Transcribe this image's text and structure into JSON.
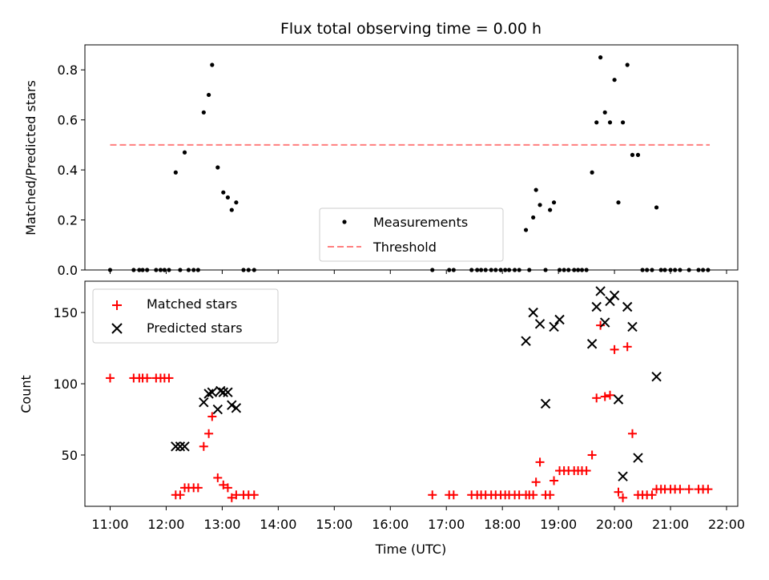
{
  "chart_data": [
    {
      "type": "scatter",
      "title": "Flux total observing time = 0.00 h",
      "xlabel": "",
      "ylabel": "Matched/Predicted stars",
      "xlim": [
        10.55,
        22.2
      ],
      "ylim": [
        0,
        0.9
      ],
      "yticks": [
        0.0,
        0.2,
        0.4,
        0.6,
        0.8
      ],
      "ytick_labels": [
        "0.0",
        "0.2",
        "0.4",
        "0.6",
        "0.8"
      ],
      "legend_position": "lower-center",
      "series": [
        {
          "name": "Measurements",
          "color": "#000000",
          "marker": "dot",
          "x": [
            11.0,
            11.42,
            11.52,
            11.58,
            11.66,
            11.82,
            11.9,
            11.97,
            12.05,
            12.17,
            12.25,
            12.33,
            12.4,
            12.49,
            12.57,
            12.67,
            12.76,
            12.82,
            12.92,
            13.02,
            13.1,
            13.17,
            13.25,
            13.38,
            13.47,
            13.57,
            16.75,
            17.05,
            17.13,
            17.45,
            17.55,
            17.62,
            17.7,
            17.8,
            17.88,
            17.97,
            18.05,
            18.12,
            18.22,
            18.3,
            18.42,
            18.48,
            18.55,
            18.6,
            18.67,
            18.77,
            18.85,
            18.92,
            19.02,
            19.1,
            19.18,
            19.28,
            19.35,
            19.42,
            19.5,
            19.6,
            19.68,
            19.75,
            19.83,
            19.92,
            20.0,
            20.07,
            20.15,
            20.23,
            20.32,
            20.42,
            20.5,
            20.58,
            20.67,
            20.75,
            20.83,
            20.9,
            21.0,
            21.08,
            21.17,
            21.33,
            21.5,
            21.58,
            21.67
          ],
          "y": [
            0.0,
            0.0,
            0.0,
            0.0,
            0.0,
            0.0,
            0.0,
            0.0,
            0.0,
            0.39,
            0.0,
            0.47,
            0.0,
            0.0,
            0.0,
            0.63,
            0.7,
            0.82,
            0.41,
            0.31,
            0.29,
            0.24,
            0.27,
            0.0,
            0.0,
            0.0,
            0.0,
            0.0,
            0.0,
            0.0,
            0.0,
            0.0,
            0.0,
            0.0,
            0.0,
            0.0,
            0.0,
            0.0,
            0.0,
            0.0,
            0.16,
            0.0,
            0.21,
            0.32,
            0.26,
            0.0,
            0.24,
            0.27,
            0.0,
            0.0,
            0.0,
            0.0,
            0.0,
            0.0,
            0.0,
            0.39,
            0.59,
            0.85,
            0.63,
            0.59,
            0.76,
            0.27,
            0.59,
            0.82,
            0.46,
            0.46,
            0.0,
            0.0,
            0.0,
            0.25,
            0.0,
            0.0,
            0.0,
            0.0,
            0.0,
            0.0,
            0.0,
            0.0,
            0.0
          ]
        },
        {
          "name": "Threshold",
          "color": "#ff7f7f",
          "style": "dashed",
          "x": [
            11.0,
            21.7
          ],
          "y": [
            0.5,
            0.5
          ]
        }
      ]
    },
    {
      "type": "scatter",
      "title": "",
      "xlabel": "Time (UTC)",
      "ylabel": "Count",
      "xlim": [
        10.55,
        22.2
      ],
      "ylim": [
        14,
        172
      ],
      "yticks": [
        50,
        100,
        150
      ],
      "ytick_labels": [
        "50",
        "100",
        "150"
      ],
      "xticks": [
        11,
        12,
        13,
        14,
        15,
        16,
        17,
        18,
        19,
        20,
        21,
        22
      ],
      "xtick_labels": [
        "11:00",
        "12:00",
        "13:00",
        "14:00",
        "15:00",
        "16:00",
        "17:00",
        "18:00",
        "19:00",
        "20:00",
        "21:00",
        "22:00"
      ],
      "legend_position": "upper-left",
      "series": [
        {
          "name": "Matched stars",
          "color": "#ff0000",
          "marker": "plus",
          "x": [
            11.0,
            11.42,
            11.52,
            11.58,
            11.66,
            11.82,
            11.9,
            11.97,
            12.05,
            12.17,
            12.25,
            12.33,
            12.4,
            12.49,
            12.57,
            12.67,
            12.76,
            12.82,
            12.92,
            13.02,
            13.1,
            13.17,
            13.25,
            13.38,
            13.47,
            13.57,
            16.75,
            17.05,
            17.13,
            17.45,
            17.55,
            17.62,
            17.7,
            17.8,
            17.88,
            17.97,
            18.05,
            18.12,
            18.22,
            18.3,
            18.42,
            18.48,
            18.55,
            18.6,
            18.67,
            18.77,
            18.85,
            18.92,
            19.02,
            19.1,
            19.18,
            19.28,
            19.35,
            19.42,
            19.5,
            19.6,
            19.68,
            19.75,
            19.83,
            19.92,
            20.0,
            20.07,
            20.15,
            20.23,
            20.32,
            20.42,
            20.5,
            20.58,
            20.67,
            20.75,
            20.83,
            20.9,
            21.0,
            21.08,
            21.17,
            21.33,
            21.5,
            21.58,
            21.67
          ],
          "y": [
            104,
            104,
            104,
            104,
            104,
            104,
            104,
            104,
            104,
            22,
            22,
            27,
            27,
            27,
            27,
            56,
            65,
            77,
            34,
            29,
            27,
            20,
            22,
            22,
            22,
            22,
            22,
            22,
            22,
            22,
            22,
            22,
            22,
            22,
            22,
            22,
            22,
            22,
            22,
            22,
            22,
            22,
            22,
            31,
            45,
            22,
            22,
            32,
            39,
            39,
            39,
            39,
            39,
            39,
            39,
            50,
            90,
            141,
            91,
            92,
            124,
            24,
            20,
            126,
            65,
            22,
            22,
            22,
            22,
            26,
            26,
            26,
            26,
            26,
            26,
            26,
            26,
            26,
            26
          ]
        },
        {
          "name": "Predicted stars",
          "color": "#000000",
          "marker": "x",
          "x": [
            12.17,
            12.25,
            12.33,
            12.67,
            12.76,
            12.82,
            12.92,
            12.97,
            13.02,
            13.1,
            13.17,
            13.25,
            18.42,
            18.55,
            18.67,
            18.77,
            18.92,
            19.02,
            19.6,
            19.68,
            19.75,
            19.83,
            19.92,
            20.0,
            20.07,
            20.15,
            20.23,
            20.32,
            20.42,
            20.75
          ],
          "y": [
            56,
            56,
            56,
            87,
            93,
            94,
            82,
            95,
            94,
            94,
            85,
            83,
            130,
            150,
            142,
            86,
            140,
            145,
            128,
            154,
            165,
            143,
            158,
            162,
            89,
            35,
            154,
            140,
            48,
            105
          ]
        }
      ]
    }
  ]
}
